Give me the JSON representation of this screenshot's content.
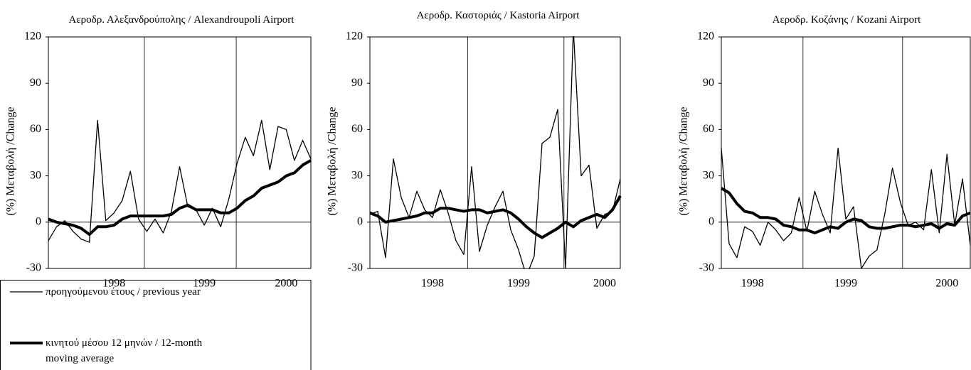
{
  "chart_data": [
    {
      "type": "line",
      "title": "Αεροδρ. Αλεξανδρούπολης / Alexandroupoli Airport",
      "y_label": "(%) Μεταβολή  /Change",
      "categories": [
        null,
        null,
        null,
        null,
        null,
        null,
        null,
        null,
        "1998",
        null,
        null,
        null,
        null,
        null,
        null,
        null,
        null,
        null,
        null,
        "1999",
        null,
        null,
        null,
        null,
        null,
        null,
        null,
        null,
        null,
        "2000",
        null,
        null,
        null
      ],
      "series": [
        {
          "name": "προηγούμενου έτους / previous year",
          "color": "#000000",
          "values": [
            -12,
            -3,
            1,
            -6,
            -11,
            -13,
            66,
            1,
            6,
            14,
            33,
            2,
            -6,
            2,
            -7,
            7,
            36,
            10,
            8,
            -2,
            9,
            -3,
            15,
            38,
            55,
            43,
            66,
            34,
            62,
            60,
            40,
            53,
            41
          ]
        },
        {
          "name": "κινητού μέσου 12 μηνών / 12-month moving average",
          "color": "#000000",
          "values": [
            2,
            0,
            -1,
            -2,
            -4,
            -8,
            -3,
            -3,
            -2,
            2,
            4,
            4,
            4,
            4,
            4,
            5,
            9,
            11,
            8,
            8,
            8,
            6,
            6,
            9,
            14,
            17,
            22,
            24,
            26,
            30,
            32,
            37,
            40
          ]
        }
      ],
      "ylim": [
        -30,
        120
      ],
      "yticks": [
        -30,
        0,
        30,
        60,
        90,
        120
      ],
      "legend": "bottom"
    },
    {
      "type": "line",
      "title": "Αεροδρ. Καστοριάς / Kastoria Airport",
      "y_label": "(%) Μεταβολή  /Change",
      "categories": [
        null,
        null,
        null,
        null,
        null,
        null,
        null,
        null,
        "1998",
        null,
        null,
        null,
        null,
        null,
        null,
        null,
        null,
        null,
        null,
        "1999",
        null,
        null,
        null,
        null,
        null,
        null,
        null,
        null,
        null,
        null,
        "2000",
        null,
        null
      ],
      "series": [
        {
          "color": "#000000",
          "values": [
            5,
            7,
            -23,
            41,
            16,
            3,
            20,
            8,
            3,
            21,
            6,
            -12,
            -21,
            36,
            -19,
            -2,
            10,
            20,
            -5,
            -18,
            -35,
            -22,
            51,
            55,
            73,
            -30,
            125,
            30,
            37,
            -4,
            5,
            7,
            28
          ]
        },
        {
          "color": "#000000",
          "values": [
            6,
            4,
            0,
            1,
            2,
            3,
            4,
            6,
            6,
            9,
            9,
            8,
            7,
            8,
            8,
            6,
            7,
            8,
            6,
            2,
            -3,
            -7,
            -10,
            -7,
            -4,
            0,
            -3,
            1,
            3,
            5,
            3,
            8,
            17
          ]
        }
      ],
      "ylim": [
        -30,
        120
      ],
      "yticks": [
        -30,
        0,
        30,
        60,
        90,
        120
      ]
    },
    {
      "type": "line",
      "title": "Αεροδρ. Κοζάνης / Kozani Airport",
      "y_label": "(%) Μεταβολή  /Change",
      "categories": [
        null,
        null,
        null,
        null,
        "1998",
        null,
        null,
        null,
        null,
        null,
        null,
        null,
        null,
        null,
        null,
        null,
        "1999",
        null,
        null,
        null,
        null,
        null,
        null,
        null,
        null,
        null,
        null,
        null,
        null,
        "2000",
        null,
        null,
        null
      ],
      "series": [
        {
          "color": "#000000",
          "values": [
            48,
            -14,
            -23,
            -3,
            -6,
            -15,
            0,
            -5,
            -12,
            -7,
            16,
            -6,
            20,
            5,
            -7,
            48,
            2,
            10,
            -30,
            -22,
            -18,
            5,
            35,
            13,
            -2,
            0,
            -5,
            34,
            -7,
            44,
            -2,
            28,
            -15
          ]
        },
        {
          "color": "#000000",
          "values": [
            22,
            19,
            12,
            7,
            6,
            3,
            3,
            2,
            -2,
            -3,
            -5,
            -5,
            -7,
            -5,
            -3,
            -4,
            0,
            2,
            1,
            -3,
            -4,
            -4,
            -3,
            -2,
            -2,
            -3,
            -2,
            -1,
            -4,
            -1,
            -2,
            4,
            6
          ]
        }
      ],
      "ylim": [
        -30,
        120
      ],
      "yticks": [
        -30,
        0,
        30,
        60,
        90,
        120
      ]
    }
  ]
}
